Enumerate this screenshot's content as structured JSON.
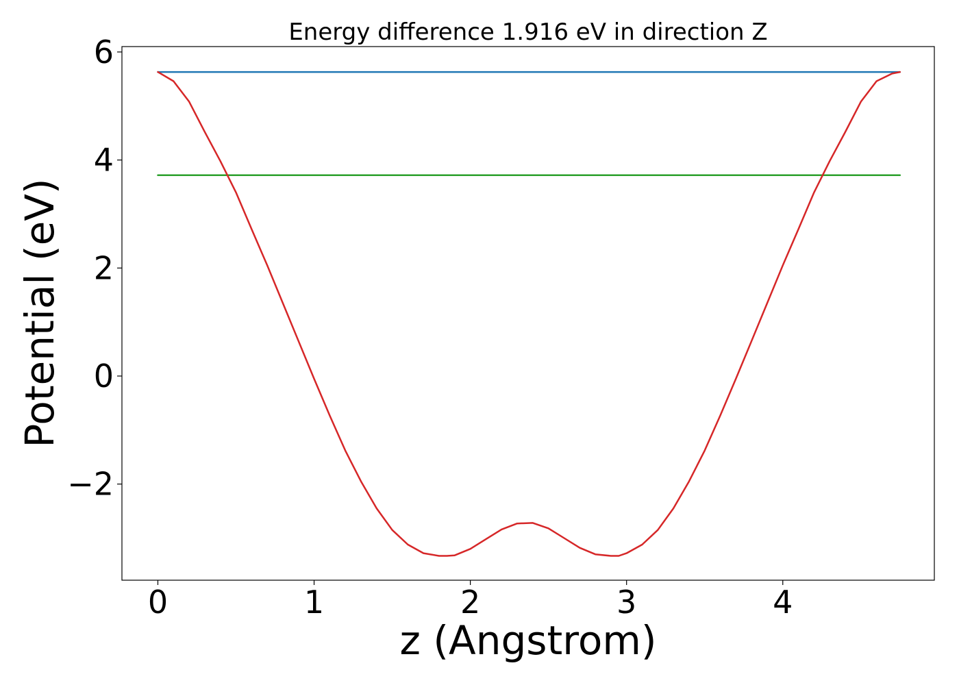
{
  "chart_data": {
    "type": "line",
    "title": "Energy difference 1.916 eV in direction Z",
    "xlabel": "z (Angstrom)",
    "ylabel": "Potential (eV)",
    "xlim": [
      -0.23,
      4.97
    ],
    "ylim": [
      -3.78,
      6.1
    ],
    "x_ticks": [
      0,
      1,
      2,
      3,
      4
    ],
    "x_tick_labels": [
      "0",
      "1",
      "2",
      "3",
      "4"
    ],
    "y_ticks": [
      -2,
      0,
      2,
      4,
      6
    ],
    "y_tick_labels": [
      "−2",
      "0",
      "2",
      "4",
      "6"
    ],
    "grid": false,
    "legend": "none",
    "series": [
      {
        "color": "#1f77b4",
        "x": [
          0,
          4.75
        ],
        "y": [
          5.63,
          5.63
        ]
      },
      {
        "color": "#2ca02c",
        "x": [
          0,
          4.75
        ],
        "y": [
          3.72,
          3.72
        ]
      },
      {
        "color": "#d62728",
        "x": [
          0,
          0.1,
          0.2,
          0.3,
          0.4,
          0.5,
          0.6,
          0.7,
          0.8,
          0.9,
          1.0,
          1.1,
          1.2,
          1.3,
          1.4,
          1.5,
          1.6,
          1.7,
          1.8,
          1.85,
          1.9,
          2.0,
          2.1,
          2.2,
          2.3,
          2.4,
          2.5,
          2.6,
          2.7,
          2.8,
          2.9,
          2.95,
          3.0,
          3.1,
          3.2,
          3.3,
          3.4,
          3.5,
          3.6,
          3.7,
          3.8,
          3.9,
          4.0,
          4.1,
          4.2,
          4.3,
          4.4,
          4.5,
          4.6,
          4.7,
          4.75
        ],
        "y": [
          5.63,
          5.46,
          5.08,
          4.52,
          3.98,
          3.4,
          2.72,
          2.05,
          1.35,
          0.65,
          -0.05,
          -0.73,
          -1.38,
          -1.95,
          -2.45,
          -2.85,
          -3.12,
          -3.28,
          -3.33,
          -3.33,
          -3.32,
          -3.2,
          -3.02,
          -2.84,
          -2.73,
          -2.72,
          -2.82,
          -3.0,
          -3.18,
          -3.3,
          -3.33,
          -3.33,
          -3.28,
          -3.12,
          -2.85,
          -2.45,
          -1.95,
          -1.38,
          -0.73,
          -0.05,
          0.65,
          1.35,
          2.05,
          2.72,
          3.4,
          3.98,
          4.52,
          5.08,
          5.46,
          5.6,
          5.63
        ]
      }
    ]
  }
}
